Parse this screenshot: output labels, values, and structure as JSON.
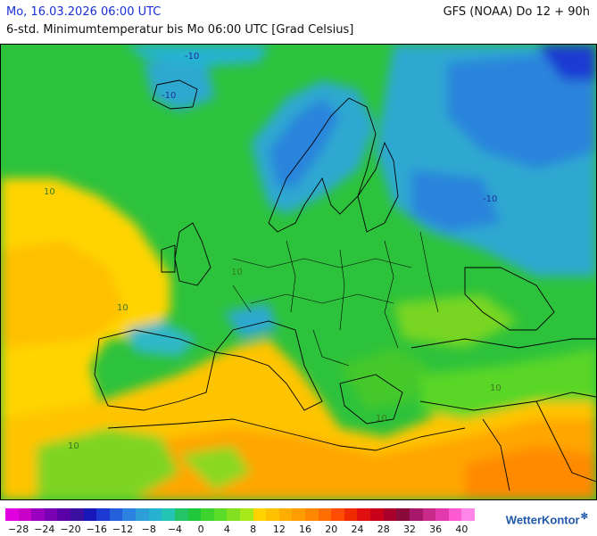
{
  "header": {
    "date": "Mo, 16.03.2026 06:00 UTC",
    "model": "GFS (NOAA) Do 12 + 90h",
    "subtitle": "6-std. Minimumtemperatur bis Mo 06:00 UTC [Grad Celsius]"
  },
  "map": {
    "contour_labels": [
      "-10",
      "-10",
      "-10",
      "10",
      "10",
      "10",
      "10",
      "10",
      "10"
    ]
  },
  "legend": {
    "ticks": [
      "−28",
      "−24",
      "−20",
      "−16",
      "−12",
      "−8",
      "−4",
      "0",
      "4",
      "8",
      "12",
      "16",
      "20",
      "24",
      "28",
      "32",
      "36",
      "40"
    ],
    "colors": [
      "#e000e0",
      "#c800c8",
      "#9a00c0",
      "#7a00b4",
      "#5a00a8",
      "#3a10a0",
      "#1818b8",
      "#1c3ad2",
      "#2460dc",
      "#2c82e0",
      "#2e9ed8",
      "#28b2d2",
      "#24c4b4",
      "#22c466",
      "#1ec83a",
      "#3ed22e",
      "#5adc28",
      "#82e020",
      "#a6e81a",
      "#ffd200",
      "#ffc000",
      "#ffae00",
      "#ff9c00",
      "#ff8800",
      "#ff6e00",
      "#ff4c00",
      "#f02a00",
      "#e01010",
      "#c8001a",
      "#a8002a",
      "#8a0a3a",
      "#a8186a",
      "#c82a8a",
      "#e23aac",
      "#ff5ad2",
      "#ff86e8"
    ]
  },
  "brand": {
    "name": "WetterKontor"
  }
}
